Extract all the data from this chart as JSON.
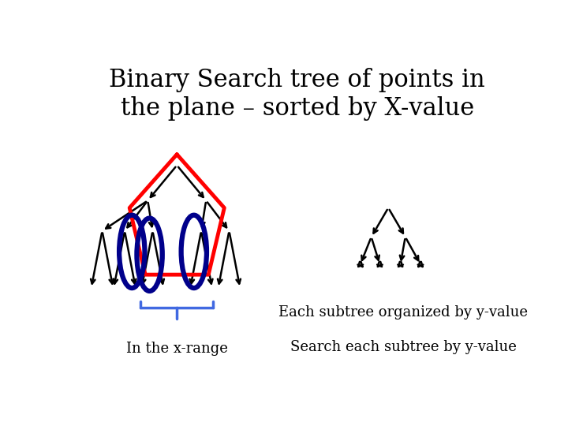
{
  "title_line1": "Binary Search tree of points in",
  "title_line2": "the plane – sorted by X-value",
  "title_fontsize": 22,
  "bg_color": "#ffffff",
  "text_color": "#000000",
  "label_left": "In the x-range",
  "label_right1": "Each subtree organized by y-value",
  "label_right2": "Search each subtree by y-value",
  "label_fontsize": 13,
  "tree_color": "#000000",
  "red_color": "#ff0000",
  "blue_dark": "#00008b",
  "blue_light": "#4169e1",
  "lw_tree": 1.8,
  "lw_red": 3.5,
  "lw_ellipse": 4.5,
  "lw_brace": 2.5
}
